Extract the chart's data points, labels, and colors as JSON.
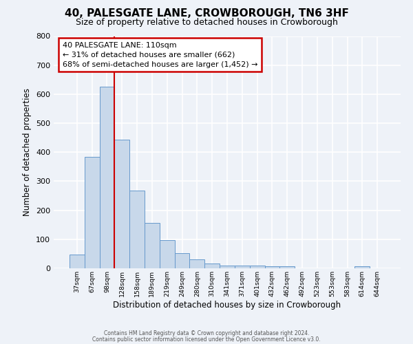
{
  "title": "40, PALESGATE LANE, CROWBOROUGH, TN6 3HF",
  "subtitle": "Size of property relative to detached houses in Crowborough",
  "xlabel": "Distribution of detached houses by size in Crowborough",
  "ylabel": "Number of detached properties",
  "bar_color": "#c8d8ea",
  "bar_edge_color": "#6699cc",
  "background_color": "#eef2f8",
  "grid_color": "#ffffff",
  "bin_labels": [
    "37sqm",
    "67sqm",
    "98sqm",
    "128sqm",
    "158sqm",
    "189sqm",
    "219sqm",
    "249sqm",
    "280sqm",
    "310sqm",
    "341sqm",
    "371sqm",
    "401sqm",
    "432sqm",
    "462sqm",
    "492sqm",
    "523sqm",
    "553sqm",
    "583sqm",
    "614sqm",
    "644sqm"
  ],
  "bar_heights": [
    48,
    385,
    625,
    443,
    267,
    157,
    98,
    51,
    30,
    17,
    10,
    10,
    10,
    8,
    8,
    0,
    0,
    0,
    0,
    7,
    0
  ],
  "ylim": [
    0,
    800
  ],
  "yticks": [
    0,
    100,
    200,
    300,
    400,
    500,
    600,
    700,
    800
  ],
  "vline_color": "#cc0000",
  "vline_x": 2.5,
  "annotation_title": "40 PALESGATE LANE: 110sqm",
  "annotation_line1": "← 31% of detached houses are smaller (662)",
  "annotation_line2": "68% of semi-detached houses are larger (1,452) →",
  "annotation_box_facecolor": "#ffffff",
  "annotation_box_edgecolor": "#cc0000",
  "footer1": "Contains HM Land Registry data © Crown copyright and database right 2024.",
  "footer2": "Contains public sector information licensed under the Open Government Licence v3.0."
}
